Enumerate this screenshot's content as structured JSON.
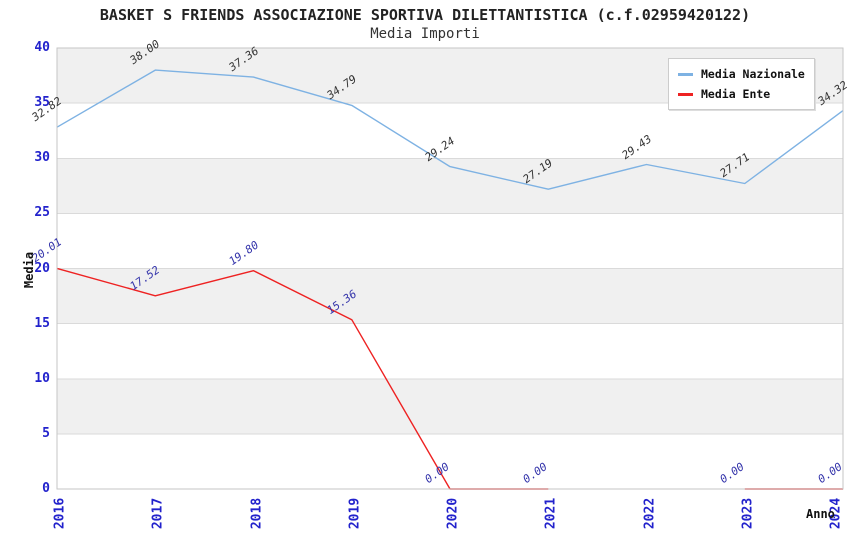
{
  "header": {
    "title": "BASKET S FRIENDS ASSOCIAZIONE SPORTIVA DILETTANTISTICA (c.f.02959420122)",
    "subtitle": "Media Importi"
  },
  "chart_data": {
    "type": "line",
    "x": [
      "2016",
      "2017",
      "2018",
      "2019",
      "2020",
      "2021",
      "2022",
      "2023",
      "2024"
    ],
    "series": [
      {
        "name": "Media Nazionale",
        "color": "#7eb2e3",
        "label_color": "#333333",
        "values": [
          32.82,
          38.0,
          37.36,
          34.79,
          29.24,
          27.19,
          29.43,
          27.71,
          34.32
        ],
        "labels": [
          "32.82",
          "38.00",
          "37.36",
          "34.79",
          "29.24",
          "27.19",
          "29.43",
          "27.71",
          "34.32"
        ]
      },
      {
        "name": "Media Ente",
        "color": "#ee2222",
        "label_color": "#3333aa",
        "values": [
          20.01,
          17.52,
          19.8,
          15.36,
          0.0,
          0.0,
          null,
          0.0,
          0.0
        ],
        "labels": [
          "20.01",
          "17.52",
          "19.80",
          "15.36",
          "0.00",
          "0.00",
          null,
          "0.00",
          "0.00"
        ]
      }
    ],
    "xlabel": "Anno",
    "ylabel": "Media",
    "ylim": [
      0,
      40
    ],
    "ytick_step": 5,
    "yticks": [
      "0",
      "5",
      "10",
      "15",
      "20",
      "25",
      "30",
      "35",
      "40"
    ],
    "grid": "horizontal",
    "background_bands": "alternating gray bands every 5 units (35-40, 25-30, 15-20, 5-10)",
    "legend_position": "top-right"
  },
  "colors": {
    "background": "#ffffff",
    "band_gray": "#f0f0f0",
    "gridline": "#dadada",
    "plot_border": "#c6c6c6",
    "tick_text_blue": "#2222cc",
    "axis_label_text": "#111111"
  }
}
